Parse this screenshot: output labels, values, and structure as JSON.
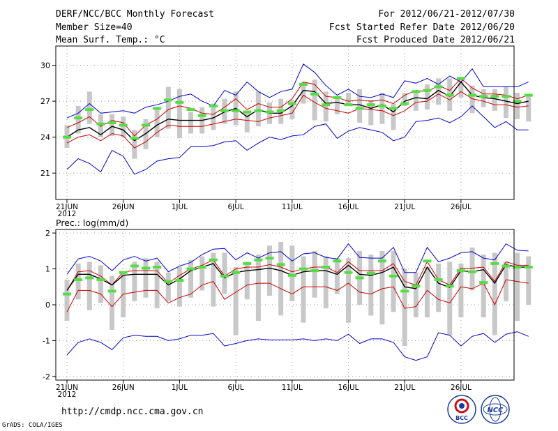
{
  "header": {
    "title": "DERF/NCC/BCC Monthly Forecast",
    "member_size": "Member Size=40",
    "variable": "Mean Surf. Temp.: °C",
    "period": "For 2012/06/21-2012/07/30",
    "started": "Fcst Started Refer Date 2012/06/20",
    "produced": "Fcst Produced Date 2012/06/21"
  },
  "footer": {
    "url": "http://cmdp.ncc.cma.gov.cn",
    "grads": "GrADS: COLA/IGES",
    "logo_bcc": "BCC",
    "logo_ncc": "NCC"
  },
  "colors": {
    "spread": "#0000cc",
    "quartile": "#cc0000",
    "mean": "#000000",
    "box": "#c8c8c8",
    "obs": "#55dd44"
  },
  "chart_data": [
    {
      "type": "line",
      "title": "Mean Surf. Temp.: °C",
      "year_label": "2012",
      "ylim": [
        18.8,
        31.6
      ],
      "yticks": [
        21,
        24,
        27,
        30
      ],
      "x_ticks": [
        {
          "day": 0,
          "label": "21JUN"
        },
        {
          "day": 5,
          "label": "26JUN"
        },
        {
          "day": 10,
          "label": "1JUL"
        },
        {
          "day": 15,
          "label": "6JUL"
        },
        {
          "day": 20,
          "label": "11JUL"
        },
        {
          "day": 25,
          "label": "16JUL"
        },
        {
          "day": 30,
          "label": "21JUL"
        },
        {
          "day": 35,
          "label": "26JUL"
        }
      ],
      "grid": true,
      "series": [
        {
          "name": "max",
          "color": "#0000cc",
          "values": [
            25.6,
            26.0,
            26.8,
            26.0,
            26.1,
            26.2,
            26.0,
            26.5,
            26.7,
            27.0,
            27.4,
            27.6,
            27.0,
            26.6,
            27.9,
            27.5,
            28.6,
            27.8,
            27.3,
            27.8,
            28.0,
            30.1,
            29.4,
            28.3,
            27.5,
            28.0,
            27.4,
            27.3,
            27.6,
            27.3,
            28.7,
            28.5,
            28.9,
            28.4,
            29.1,
            28.6,
            29.7,
            28.2,
            28.2,
            28.2,
            28.2,
            28.6
          ]
        },
        {
          "name": "upper",
          "color": "#cc0000",
          "values": [
            24.8,
            25.2,
            25.7,
            24.9,
            25.4,
            25.2,
            24.1,
            25.0,
            25.5,
            26.3,
            26.6,
            26.4,
            26.0,
            25.9,
            26.5,
            27.2,
            26.3,
            26.8,
            26.5,
            26.5,
            27.2,
            28.6,
            28.4,
            27.4,
            27.3,
            27.0,
            27.1,
            27.0,
            27.1,
            26.8,
            27.5,
            27.9,
            27.8,
            28.3,
            27.9,
            28.9,
            28.1,
            27.6,
            27.6,
            27.5,
            27.2,
            27.5
          ]
        },
        {
          "name": "mean",
          "color": "#000000",
          "values": [
            24.0,
            24.6,
            24.8,
            24.2,
            24.9,
            24.6,
            23.7,
            24.3,
            25.0,
            25.5,
            25.4,
            25.4,
            25.4,
            25.6,
            26.1,
            26.4,
            25.7,
            26.3,
            26.0,
            26.0,
            26.6,
            27.9,
            27.8,
            26.8,
            26.9,
            26.7,
            26.7,
            26.4,
            26.7,
            26.1,
            27.0,
            27.3,
            27.2,
            27.9,
            27.4,
            28.6,
            27.5,
            27.3,
            27.2,
            27.0,
            26.8,
            27.0
          ]
        },
        {
          "name": "lower",
          "color": "#cc0000",
          "values": [
            23.5,
            24.0,
            24.2,
            23.7,
            24.3,
            24.1,
            23.1,
            23.6,
            24.4,
            25.0,
            24.9,
            24.9,
            24.9,
            25.1,
            25.3,
            25.5,
            25.4,
            25.3,
            25.6,
            25.8,
            26.0,
            27.5,
            26.9,
            26.4,
            26.2,
            26.0,
            26.4,
            26.3,
            26.2,
            25.8,
            26.2,
            26.9,
            27.0,
            27.6,
            27.1,
            27.8,
            27.2,
            27.0,
            26.7,
            26.7,
            26.5,
            26.6
          ]
        },
        {
          "name": "min",
          "color": "#0000cc",
          "values": [
            21.3,
            22.2,
            21.8,
            21.1,
            22.9,
            22.4,
            20.9,
            21.3,
            22.0,
            22.2,
            22.3,
            23.2,
            23.2,
            23.3,
            23.6,
            23.7,
            22.9,
            23.5,
            24.0,
            23.8,
            24.1,
            24.2,
            24.9,
            25.1,
            23.9,
            24.5,
            24.8,
            24.6,
            24.4,
            23.7,
            24.0,
            25.3,
            25.4,
            25.6,
            25.2,
            25.7,
            26.6,
            25.7,
            24.8,
            25.3,
            24.6,
            24.6
          ]
        }
      ],
      "boxes": [
        [
          23.1,
          25.0
        ],
        [
          24.3,
          26.6
        ],
        [
          25.1,
          27.8
        ],
        [
          24.0,
          25.9
        ],
        [
          24.1,
          25.9
        ],
        [
          24.0,
          25.7
        ],
        [
          22.2,
          24.6
        ],
        [
          23.0,
          25.5
        ],
        [
          24.0,
          26.4
        ],
        [
          24.7,
          28.2
        ],
        [
          23.9,
          28.0
        ],
        [
          24.3,
          26.1
        ],
        [
          24.3,
          26.5
        ],
        [
          24.6,
          26.8
        ],
        [
          25.1,
          27.2
        ],
        [
          25.0,
          27.8
        ],
        [
          24.4,
          26.2
        ],
        [
          24.9,
          27.8
        ],
        [
          25.1,
          26.9
        ],
        [
          25.1,
          27.2
        ],
        [
          25.5,
          27.1
        ],
        [
          26.8,
          28.6
        ],
        [
          25.4,
          28.8
        ],
        [
          25.3,
          27.8
        ],
        [
          25.9,
          27.4
        ],
        [
          26.6,
          27.7
        ],
        [
          25.2,
          28.0
        ],
        [
          25.0,
          27.1
        ],
        [
          25.1,
          27.7
        ],
        [
          24.6,
          26.8
        ],
        [
          26.6,
          27.7
        ],
        [
          26.2,
          27.7
        ],
        [
          26.3,
          28.4
        ],
        [
          26.7,
          28.9
        ],
        [
          26.2,
          28.9
        ],
        [
          27.3,
          29.0
        ],
        [
          26.0,
          28.3
        ],
        [
          26.5,
          28.0
        ],
        [
          26.2,
          28.0
        ],
        [
          25.6,
          28.2
        ],
        [
          25.5,
          27.7
        ],
        [
          25.3,
          27.6
        ]
      ],
      "observed": [
        24.0,
        25.6,
        26.3,
        25.1,
        25.2,
        25.0,
        23.9,
        25.0,
        26.4,
        27.1,
        26.9,
        26.3,
        25.8,
        26.6,
        26.2,
        26.2,
        26.1,
        26.2,
        26.1,
        26.2,
        26.8,
        28.4,
        27.6,
        26.7,
        27.3,
        26.7,
        26.4,
        26.7,
        26.6,
        26.4,
        26.8,
        27.8,
        27.9,
        28.2,
        27.5,
        28.9,
        27.5,
        27.4,
        27.4,
        27.4,
        27.0,
        27.5
      ]
    },
    {
      "type": "line",
      "title": "Prec.: log(mm/d)",
      "year_label": "2012",
      "ylim": [
        -2.1,
        2.1
      ],
      "yticks": [
        -2,
        -1,
        0,
        1,
        2
      ],
      "x_ticks": [
        {
          "day": 0,
          "label": "21JUN"
        },
        {
          "day": 5,
          "label": "26JUN"
        },
        {
          "day": 10,
          "label": "1JUL"
        },
        {
          "day": 15,
          "label": "6JUL"
        },
        {
          "day": 20,
          "label": "11JUL"
        },
        {
          "day": 25,
          "label": "16JUL"
        },
        {
          "day": 30,
          "label": "21JUL"
        },
        {
          "day": 35,
          "label": "26JUL"
        }
      ],
      "grid": true,
      "series": [
        {
          "name": "max",
          "color": "#0000cc",
          "values": [
            0.85,
            1.28,
            1.35,
            1.22,
            0.95,
            1.25,
            1.35,
            1.22,
            1.3,
            0.92,
            1.08,
            1.18,
            1.4,
            1.55,
            1.57,
            1.25,
            1.45,
            1.3,
            1.45,
            1.48,
            1.22,
            1.42,
            1.45,
            1.32,
            1.28,
            1.7,
            1.32,
            1.3,
            1.3,
            1.6,
            0.9,
            0.9,
            1.6,
            1.2,
            1.3,
            1.45,
            1.48,
            1.3,
            1.25,
            1.7,
            1.52,
            1.5
          ]
        },
        {
          "name": "upper",
          "color": "#cc0000",
          "values": [
            0.4,
            0.92,
            0.95,
            0.8,
            0.55,
            0.92,
            0.95,
            0.95,
            0.95,
            0.6,
            0.82,
            1.0,
            1.1,
            1.25,
            0.8,
            1.0,
            1.05,
            1.05,
            1.12,
            1.05,
            0.92,
            1.0,
            1.05,
            1.05,
            0.9,
            1.2,
            0.95,
            0.95,
            0.95,
            1.15,
            0.65,
            0.55,
            1.2,
            0.7,
            0.55,
            1.02,
            1.02,
            1.05,
            0.65,
            1.2,
            1.1,
            1.1
          ]
        },
        {
          "name": "mean",
          "color": "#000000",
          "values": [
            0.4,
            0.85,
            0.85,
            0.72,
            0.55,
            0.82,
            0.85,
            0.85,
            0.85,
            0.55,
            0.72,
            0.95,
            1.05,
            1.15,
            0.75,
            0.9,
            0.95,
            0.98,
            1.02,
            0.95,
            0.82,
            0.92,
            0.95,
            0.95,
            0.85,
            1.1,
            0.85,
            0.82,
            0.9,
            1.05,
            0.5,
            0.45,
            1.05,
            0.6,
            0.48,
            0.95,
            0.92,
            0.98,
            0.6,
            1.12,
            1.05,
            1.05
          ]
        },
        {
          "name": "lower",
          "color": "#cc0000",
          "values": [
            -0.2,
            0.4,
            0.4,
            0.3,
            -0.05,
            0.3,
            0.35,
            0.4,
            0.4,
            0.05,
            0.2,
            0.3,
            0.55,
            0.65,
            0.15,
            0.35,
            0.55,
            0.6,
            0.6,
            0.45,
            0.3,
            0.5,
            0.5,
            0.5,
            0.4,
            0.6,
            0.35,
            0.3,
            0.45,
            0.5,
            -0.1,
            -0.05,
            0.4,
            0.15,
            0.05,
            0.5,
            0.45,
            0.6,
            0.0,
            0.7,
            0.65,
            0.6
          ]
        },
        {
          "name": "min",
          "color": "#0000cc",
          "values": [
            -1.4,
            -1.05,
            -0.95,
            -1.05,
            -1.25,
            -0.92,
            -0.85,
            -0.88,
            -0.88,
            -1.0,
            -0.95,
            -0.85,
            -0.85,
            -0.8,
            -1.15,
            -1.08,
            -1.0,
            -0.95,
            -0.98,
            -0.98,
            -0.98,
            -0.95,
            -1.0,
            -0.95,
            -1.0,
            -0.82,
            -1.08,
            -0.95,
            -0.95,
            -1.05,
            -1.45,
            -1.55,
            -1.45,
            -0.78,
            -0.85,
            -1.15,
            -0.88,
            -0.8,
            -1.05,
            -0.82,
            -0.75,
            -0.88
          ]
        }
      ],
      "boxes": [
        [
          -0.45,
          0.7
        ],
        [
          0.15,
          1.15
        ],
        [
          -0.15,
          1.2
        ],
        [
          0.05,
          1.1
        ],
        [
          -0.7,
          0.8
        ],
        [
          -0.35,
          0.9
        ],
        [
          0.1,
          1.2
        ],
        [
          0.2,
          1.3
        ],
        [
          -0.1,
          1.2
        ],
        [
          0.1,
          0.9
        ],
        [
          -0.05,
          1.05
        ],
        [
          0.2,
          1.25
        ],
        [
          0.4,
          1.35
        ],
        [
          -0.05,
          1.45
        ],
        [
          0.3,
          1.45
        ],
        [
          -0.85,
          1.05
        ],
        [
          0.15,
          1.2
        ],
        [
          -0.45,
          1.4
        ],
        [
          0.25,
          1.65
        ],
        [
          -0.3,
          1.75
        ],
        [
          0.1,
          1.65
        ],
        [
          -0.5,
          1.35
        ],
        [
          0.2,
          1.5
        ],
        [
          -0.1,
          1.35
        ],
        [
          0.3,
          1.3
        ],
        [
          -0.5,
          1.3
        ],
        [
          0.0,
          1.5
        ],
        [
          -0.3,
          1.4
        ],
        [
          -0.55,
          1.5
        ],
        [
          -0.2,
          1.5
        ],
        [
          -1.15,
          1.0
        ],
        [
          -0.35,
          0.9
        ],
        [
          -0.35,
          1.05
        ],
        [
          -0.2,
          1.15
        ],
        [
          -0.85,
          1.2
        ],
        [
          -0.35,
          1.15
        ],
        [
          0.4,
          1.6
        ],
        [
          -0.35,
          1.4
        ],
        [
          -0.85,
          1.45
        ],
        [
          0.1,
          1.2
        ],
        [
          -0.45,
          1.45
        ],
        [
          0.0,
          1.35
        ]
      ],
      "observed": [
        0.3,
        0.7,
        0.75,
        0.7,
        0.38,
        0.9,
        1.08,
        1.02,
        1.05,
        0.65,
        0.68,
        1.0,
        1.05,
        1.25,
        0.8,
        0.9,
        1.15,
        1.25,
        1.3,
        1.12,
        0.82,
        1.0,
        0.95,
        1.05,
        1.22,
        0.9,
        0.75,
        0.88,
        1.22,
        0.8,
        0.38,
        0.52,
        1.22,
        0.7,
        0.52,
        0.95,
        0.92,
        0.62,
        1.15,
        1.08,
        1.05,
        1.05
      ]
    }
  ]
}
